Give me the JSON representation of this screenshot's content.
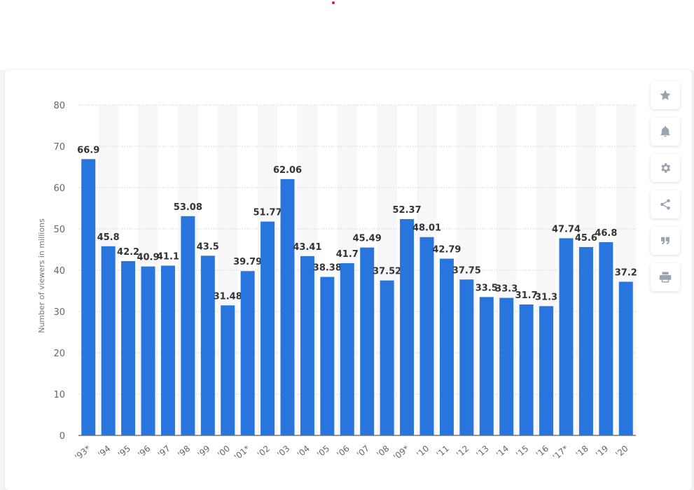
{
  "chart_data": {
    "type": "bar",
    "categories": [
      "'93*",
      "'94",
      "'95",
      "'96",
      "'97",
      "'98",
      "'99",
      "'00",
      "'01*",
      "'02",
      "'03",
      "'04",
      "'05",
      "'06",
      "'07",
      "'08",
      "'09*",
      "'10",
      "'11",
      "'12",
      "'13",
      "'14",
      "'15",
      "'16",
      "'17*",
      "'18",
      "'19",
      "'20"
    ],
    "values": [
      66.9,
      45.8,
      42.2,
      40.9,
      41.1,
      53.08,
      43.5,
      31.48,
      39.79,
      51.77,
      62.06,
      43.41,
      38.38,
      41.7,
      45.49,
      37.52,
      52.37,
      48.01,
      42.79,
      37.75,
      33.5,
      33.3,
      31.7,
      31.3,
      47.74,
      45.6,
      46.8,
      37.2
    ],
    "value_labels": [
      "66.9",
      "45.8",
      "42.2",
      "40.9",
      "41.1",
      "53.08",
      "43.5",
      "31.48",
      "39.79",
      "51.77",
      "62.06",
      "43.41",
      "38.38",
      "41.7",
      "45.49",
      "37.52",
      "52.37",
      "48.01",
      "42.79",
      "37.75",
      "33.5",
      "33.3",
      "31.7",
      "31.3",
      "47.74",
      "45.6",
      "46.8",
      "37.2"
    ],
    "title": "",
    "xlabel": "",
    "ylabel": "Number of viewers in millions",
    "ylim": [
      0,
      80
    ],
    "yticks": [
      0,
      10,
      20,
      30,
      40,
      50,
      60,
      70,
      80
    ],
    "grid": true,
    "bar_color": "#2876dd",
    "value_label_color": "#333333",
    "tick_color": "#666666"
  },
  "toolbar": {
    "buttons": [
      {
        "name": "favorite-button",
        "icon": "star-icon"
      },
      {
        "name": "notification-button",
        "icon": "bell-icon"
      },
      {
        "name": "settings-button",
        "icon": "gear-icon"
      },
      {
        "name": "share-button",
        "icon": "share-icon"
      },
      {
        "name": "cite-button",
        "icon": "quote-icon"
      },
      {
        "name": "print-button",
        "icon": "print-icon"
      }
    ]
  }
}
